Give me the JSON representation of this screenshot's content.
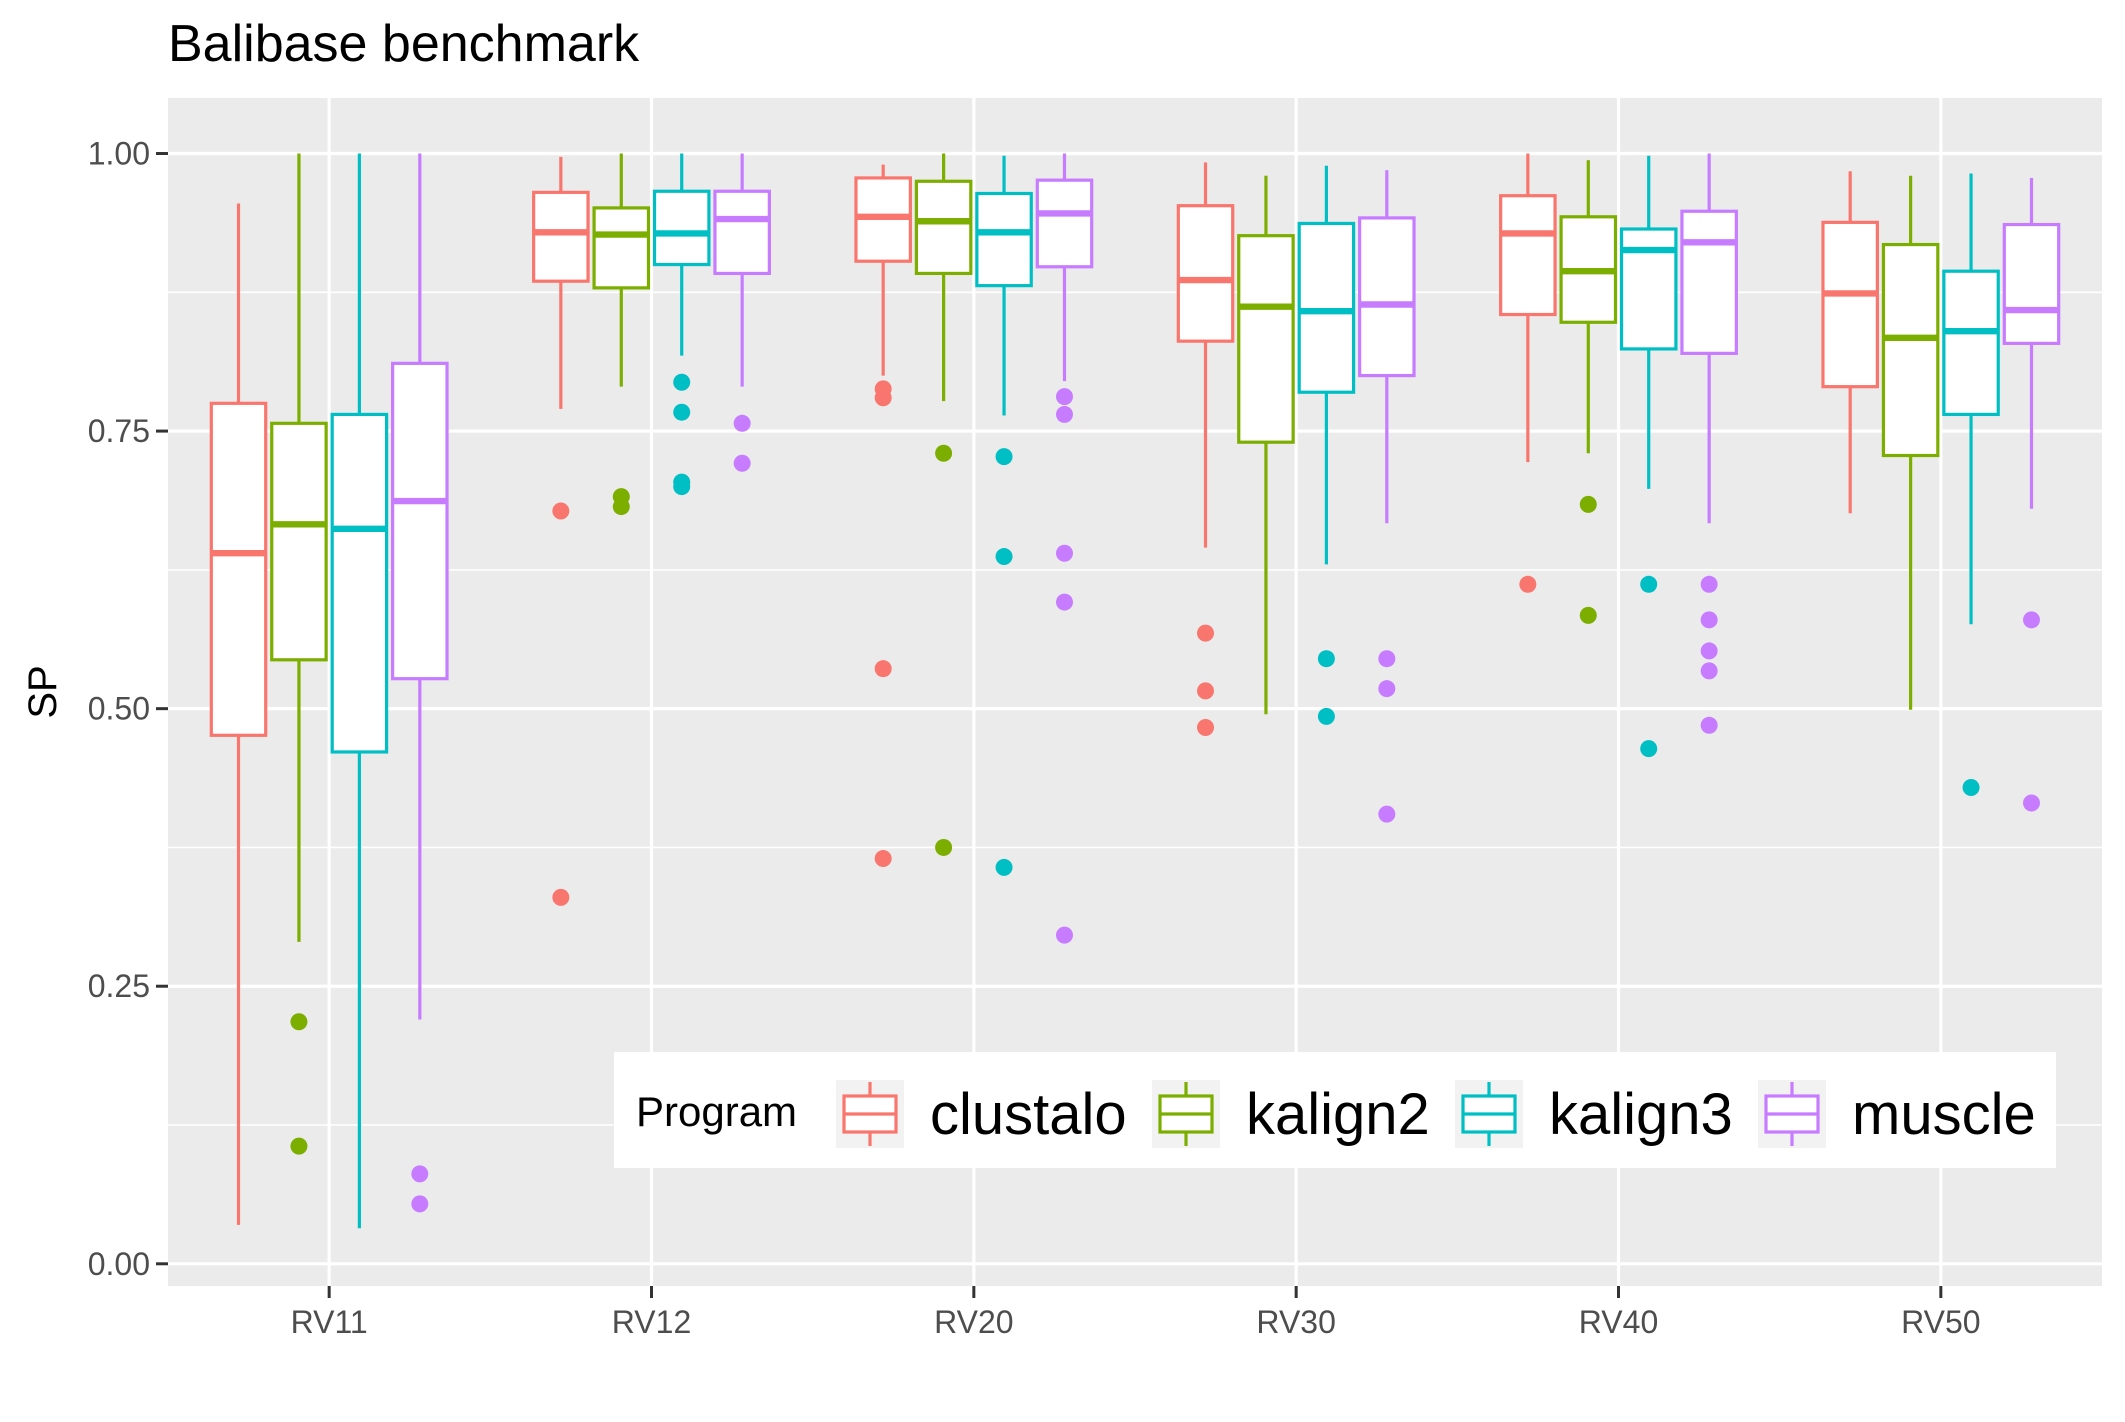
{
  "chart_data": {
    "type": "boxplot",
    "title": "Balibase benchmark",
    "xlabel": "",
    "ylabel": "SP",
    "ylim": [
      -0.02,
      1.05
    ],
    "yticks": [
      "0.00",
      "0.25",
      "0.50",
      "0.75",
      "1.00"
    ],
    "ytick_values": [
      0,
      0.25,
      0.5,
      0.75,
      1.0
    ],
    "grid": true,
    "categories": [
      "RV11",
      "RV12",
      "RV20",
      "RV30",
      "RV40",
      "RV50"
    ],
    "legend": {
      "title": "Program",
      "position": "inside-bottom-right"
    },
    "series": [
      {
        "name": "clustalo",
        "color": "#F8766D",
        "boxes": [
          {
            "whisker_low": 0.035,
            "q1": 0.476,
            "median": 0.64,
            "q3": 0.775,
            "whisker_high": 0.955,
            "outliers": []
          },
          {
            "whisker_low": 0.77,
            "q1": 0.885,
            "median": 0.929,
            "q3": 0.965,
            "whisker_high": 0.997,
            "outliers": [
              0.678,
              0.33
            ]
          },
          {
            "whisker_low": 0.8,
            "q1": 0.903,
            "median": 0.943,
            "q3": 0.978,
            "whisker_high": 0.99,
            "outliers": [
              0.788,
              0.78,
              0.536,
              0.365
            ]
          },
          {
            "whisker_low": 0.645,
            "q1": 0.831,
            "median": 0.886,
            "q3": 0.953,
            "whisker_high": 0.992,
            "outliers": [
              0.568,
              0.516,
              0.483
            ]
          },
          {
            "whisker_low": 0.722,
            "q1": 0.855,
            "median": 0.928,
            "q3": 0.962,
            "whisker_high": 1.0,
            "outliers": [
              0.612
            ]
          },
          {
            "whisker_low": 0.676,
            "q1": 0.79,
            "median": 0.874,
            "q3": 0.938,
            "whisker_high": 0.984,
            "outliers": []
          }
        ]
      },
      {
        "name": "kalign2",
        "color": "#7CAE00",
        "boxes": [
          {
            "whisker_low": 0.29,
            "q1": 0.544,
            "median": 0.666,
            "q3": 0.757,
            "whisker_high": 1.0,
            "outliers": [
              0.218,
              0.106
            ]
          },
          {
            "whisker_low": 0.79,
            "q1": 0.879,
            "median": 0.927,
            "q3": 0.951,
            "whisker_high": 1.0,
            "outliers": [
              0.691,
              0.682
            ]
          },
          {
            "whisker_low": 0.777,
            "q1": 0.892,
            "median": 0.939,
            "q3": 0.975,
            "whisker_high": 1.0,
            "outliers": [
              0.73,
              0.375
            ]
          },
          {
            "whisker_low": 0.495,
            "q1": 0.74,
            "median": 0.862,
            "q3": 0.926,
            "whisker_high": 0.98,
            "outliers": []
          },
          {
            "whisker_low": 0.73,
            "q1": 0.848,
            "median": 0.894,
            "q3": 0.943,
            "whisker_high": 0.994,
            "outliers": [
              0.684,
              0.584
            ]
          },
          {
            "whisker_low": 0.499,
            "q1": 0.728,
            "median": 0.834,
            "q3": 0.918,
            "whisker_high": 0.98,
            "outliers": []
          }
        ]
      },
      {
        "name": "kalign3",
        "color": "#00BFC4",
        "boxes": [
          {
            "whisker_low": 0.032,
            "q1": 0.461,
            "median": 0.662,
            "q3": 0.765,
            "whisker_high": 1.0,
            "outliers": []
          },
          {
            "whisker_low": 0.818,
            "q1": 0.9,
            "median": 0.928,
            "q3": 0.966,
            "whisker_high": 1.0,
            "outliers": [
              0.794,
              0.767,
              0.704,
              0.7
            ]
          },
          {
            "whisker_low": 0.764,
            "q1": 0.881,
            "median": 0.929,
            "q3": 0.964,
            "whisker_high": 0.998,
            "outliers": [
              0.727,
              0.637,
              0.357
            ]
          },
          {
            "whisker_low": 0.63,
            "q1": 0.785,
            "median": 0.858,
            "q3": 0.937,
            "whisker_high": 0.989,
            "outliers": [
              0.545,
              0.493
            ]
          },
          {
            "whisker_low": 0.698,
            "q1": 0.824,
            "median": 0.913,
            "q3": 0.932,
            "whisker_high": 0.998,
            "outliers": [
              0.612,
              0.464
            ]
          },
          {
            "whisker_low": 0.576,
            "q1": 0.765,
            "median": 0.84,
            "q3": 0.894,
            "whisker_high": 0.982,
            "outliers": [
              0.429
            ]
          }
        ]
      },
      {
        "name": "muscle",
        "color": "#C77CFF",
        "boxes": [
          {
            "whisker_low": 0.22,
            "q1": 0.527,
            "median": 0.687,
            "q3": 0.811,
            "whisker_high": 1.0,
            "outliers": [
              0.081,
              0.054
            ]
          },
          {
            "whisker_low": 0.79,
            "q1": 0.892,
            "median": 0.941,
            "q3": 0.966,
            "whisker_high": 1.0,
            "outliers": [
              0.757,
              0.721
            ]
          },
          {
            "whisker_low": 0.795,
            "q1": 0.898,
            "median": 0.946,
            "q3": 0.976,
            "whisker_high": 1.0,
            "outliers": [
              0.781,
              0.765,
              0.64,
              0.596,
              0.296
            ]
          },
          {
            "whisker_low": 0.667,
            "q1": 0.8,
            "median": 0.864,
            "q3": 0.942,
            "whisker_high": 0.985,
            "outliers": [
              0.545,
              0.518,
              0.405
            ]
          },
          {
            "whisker_low": 0.667,
            "q1": 0.82,
            "median": 0.92,
            "q3": 0.948,
            "whisker_high": 1.0,
            "outliers": [
              0.612,
              0.58,
              0.552,
              0.534,
              0.485
            ]
          },
          {
            "whisker_low": 0.68,
            "q1": 0.829,
            "median": 0.859,
            "q3": 0.936,
            "whisker_high": 0.978,
            "outliers": [
              0.58,
              0.415
            ]
          }
        ]
      }
    ]
  }
}
